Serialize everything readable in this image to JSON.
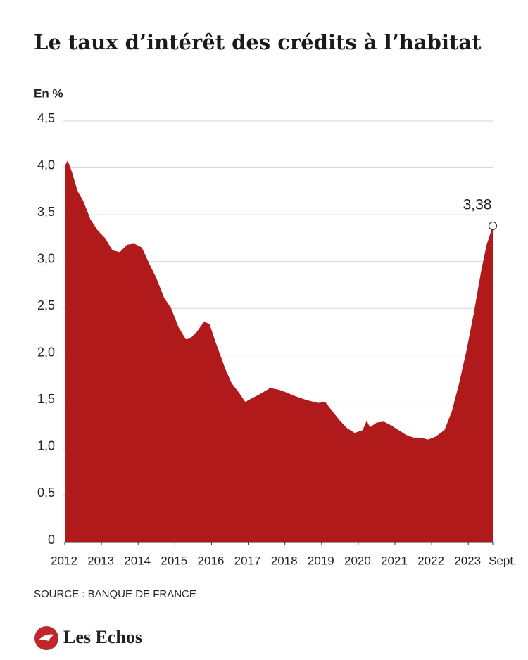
{
  "chart_data": {
    "type": "area",
    "title": "Le taux d’intérêt des crédits à l’habitat",
    "y_label": "En %",
    "source": "SOURCE : BANQUE DE FRANCE",
    "brand": "Les Echos",
    "color": "#b11a1b",
    "grid": true,
    "xlim": [
      2012,
      2023.667
    ],
    "ylim": [
      0,
      4.5
    ],
    "xticks": [
      2012,
      2013,
      2014,
      2015,
      2016,
      2017,
      2018,
      2019,
      2020,
      2021,
      2022,
      2023,
      {
        "value": 2023.667,
        "label": "Sept."
      }
    ],
    "yticks": [
      0,
      {
        "value": 0.5,
        "label": "0,5"
      },
      {
        "value": 1,
        "label": "1,0"
      },
      {
        "value": 1.5,
        "label": "1,5"
      },
      {
        "value": 2,
        "label": "2,0"
      },
      {
        "value": 2.5,
        "label": "2,5"
      },
      {
        "value": 3,
        "label": "3,0"
      },
      {
        "value": 3.5,
        "label": "3,5"
      },
      {
        "value": 4,
        "label": "4,0"
      },
      {
        "value": 4.5,
        "label": "4,5"
      }
    ],
    "x": [
      2012.0,
      2012.08,
      2012.2,
      2012.35,
      2012.5,
      2012.7,
      2012.9,
      2013.1,
      2013.3,
      2013.5,
      2013.7,
      2013.9,
      2014.1,
      2014.3,
      2014.5,
      2014.7,
      2014.9,
      2015.1,
      2015.3,
      2015.42,
      2015.6,
      2015.8,
      2015.95,
      2016.1,
      2016.38,
      2016.55,
      2016.75,
      2016.92,
      2017.05,
      2017.3,
      2017.6,
      2017.85,
      2018.05,
      2018.3,
      2018.6,
      2018.9,
      2019.1,
      2019.3,
      2019.5,
      2019.7,
      2019.9,
      2020.12,
      2020.23,
      2020.32,
      2020.5,
      2020.7,
      2020.9,
      2021.1,
      2021.3,
      2021.5,
      2021.7,
      2021.9,
      2022.1,
      2022.35,
      2022.55,
      2022.75,
      2022.95,
      2023.15,
      2023.35,
      2023.5,
      2023.667
    ],
    "values": [
      4.02,
      4.08,
      3.95,
      3.75,
      3.65,
      3.45,
      3.33,
      3.25,
      3.12,
      3.1,
      3.18,
      3.19,
      3.15,
      2.98,
      2.82,
      2.62,
      2.5,
      2.3,
      2.17,
      2.18,
      2.25,
      2.36,
      2.33,
      2.15,
      1.85,
      1.7,
      1.6,
      1.5,
      1.53,
      1.58,
      1.65,
      1.63,
      1.6,
      1.56,
      1.52,
      1.49,
      1.5,
      1.4,
      1.3,
      1.22,
      1.17,
      1.2,
      1.3,
      1.23,
      1.28,
      1.29,
      1.25,
      1.2,
      1.15,
      1.12,
      1.12,
      1.1,
      1.13,
      1.2,
      1.4,
      1.7,
      2.05,
      2.45,
      2.9,
      3.18,
      3.38
    ],
    "value_labels": [
      null,
      null,
      null,
      null,
      null,
      null,
      null,
      null,
      null,
      null,
      null,
      null,
      null,
      null,
      null,
      null,
      null,
      null,
      null,
      null,
      null,
      null,
      null,
      null,
      null,
      null,
      null,
      null,
      null,
      null,
      null,
      null,
      null,
      null,
      null,
      null,
      null,
      null,
      null,
      null,
      null,
      null,
      null,
      null,
      null,
      null,
      null,
      null,
      null,
      null,
      null,
      null,
      null,
      null,
      null,
      null,
      null,
      null,
      null,
      null,
      "3,38"
    ]
  }
}
